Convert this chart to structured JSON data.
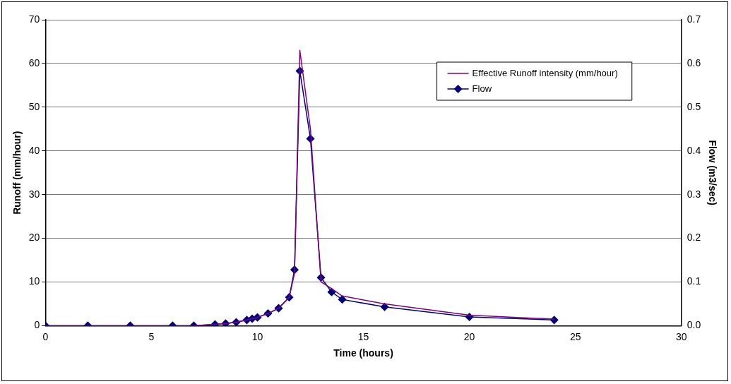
{
  "chart_data": {
    "type": "line",
    "xlabel": "Time (hours)",
    "ylabel": "Runoff (mm/hour)",
    "y2label": "Flow (m3/sec)",
    "x": [
      0,
      2,
      4,
      6,
      7,
      8,
      8.5,
      9,
      9.5,
      9.75,
      10,
      10.5,
      11,
      11.5,
      11.75,
      12,
      12.5,
      13,
      13.5,
      14,
      16,
      20,
      24
    ],
    "series": [
      {
        "name": "Effective Runoff intensity (mm/hour)",
        "color": "#800080",
        "marker": "none",
        "values": [
          0,
          0,
          0,
          0,
          0,
          0.3,
          0.5,
          0.8,
          1.3,
          1.6,
          1.9,
          2.8,
          4,
          6.5,
          12,
          63,
          45,
          10,
          8.5,
          6.8,
          5,
          2.4,
          1.5
        ]
      },
      {
        "name": "Flow",
        "color": "#000080",
        "marker": "diamond",
        "axis": "y2",
        "values": [
          0,
          0,
          0,
          0,
          0,
          0.003,
          0.005,
          0.008,
          0.013,
          0.016,
          0.019,
          0.028,
          0.04,
          0.065,
          0.128,
          0.583,
          0.428,
          0.11,
          0.077,
          0.06,
          0.043,
          0.02,
          0.013
        ]
      }
    ],
    "xlim": [
      0,
      30
    ],
    "xticks": [
      0,
      5,
      10,
      15,
      20,
      25,
      30
    ],
    "ylim": [
      0,
      70
    ],
    "yticks": [
      0,
      10,
      20,
      30,
      40,
      50,
      60,
      70
    ],
    "y2lim": [
      0,
      0.7
    ],
    "y2ticks": [
      {
        "value": 0,
        "label": "0.0"
      },
      {
        "value": 0.1,
        "label": "0.1"
      },
      {
        "value": 0.2,
        "label": "0.2"
      },
      {
        "value": 0.3,
        "label": "0.3"
      },
      {
        "value": 0.4,
        "label": "0.4"
      },
      {
        "value": 0.5,
        "label": "0.5"
      },
      {
        "value": 0.6,
        "label": "0.6"
      },
      {
        "value": 0.7,
        "label": "0.7"
      }
    ],
    "grid": "y",
    "legend": "top right",
    "line_style": "solid"
  }
}
